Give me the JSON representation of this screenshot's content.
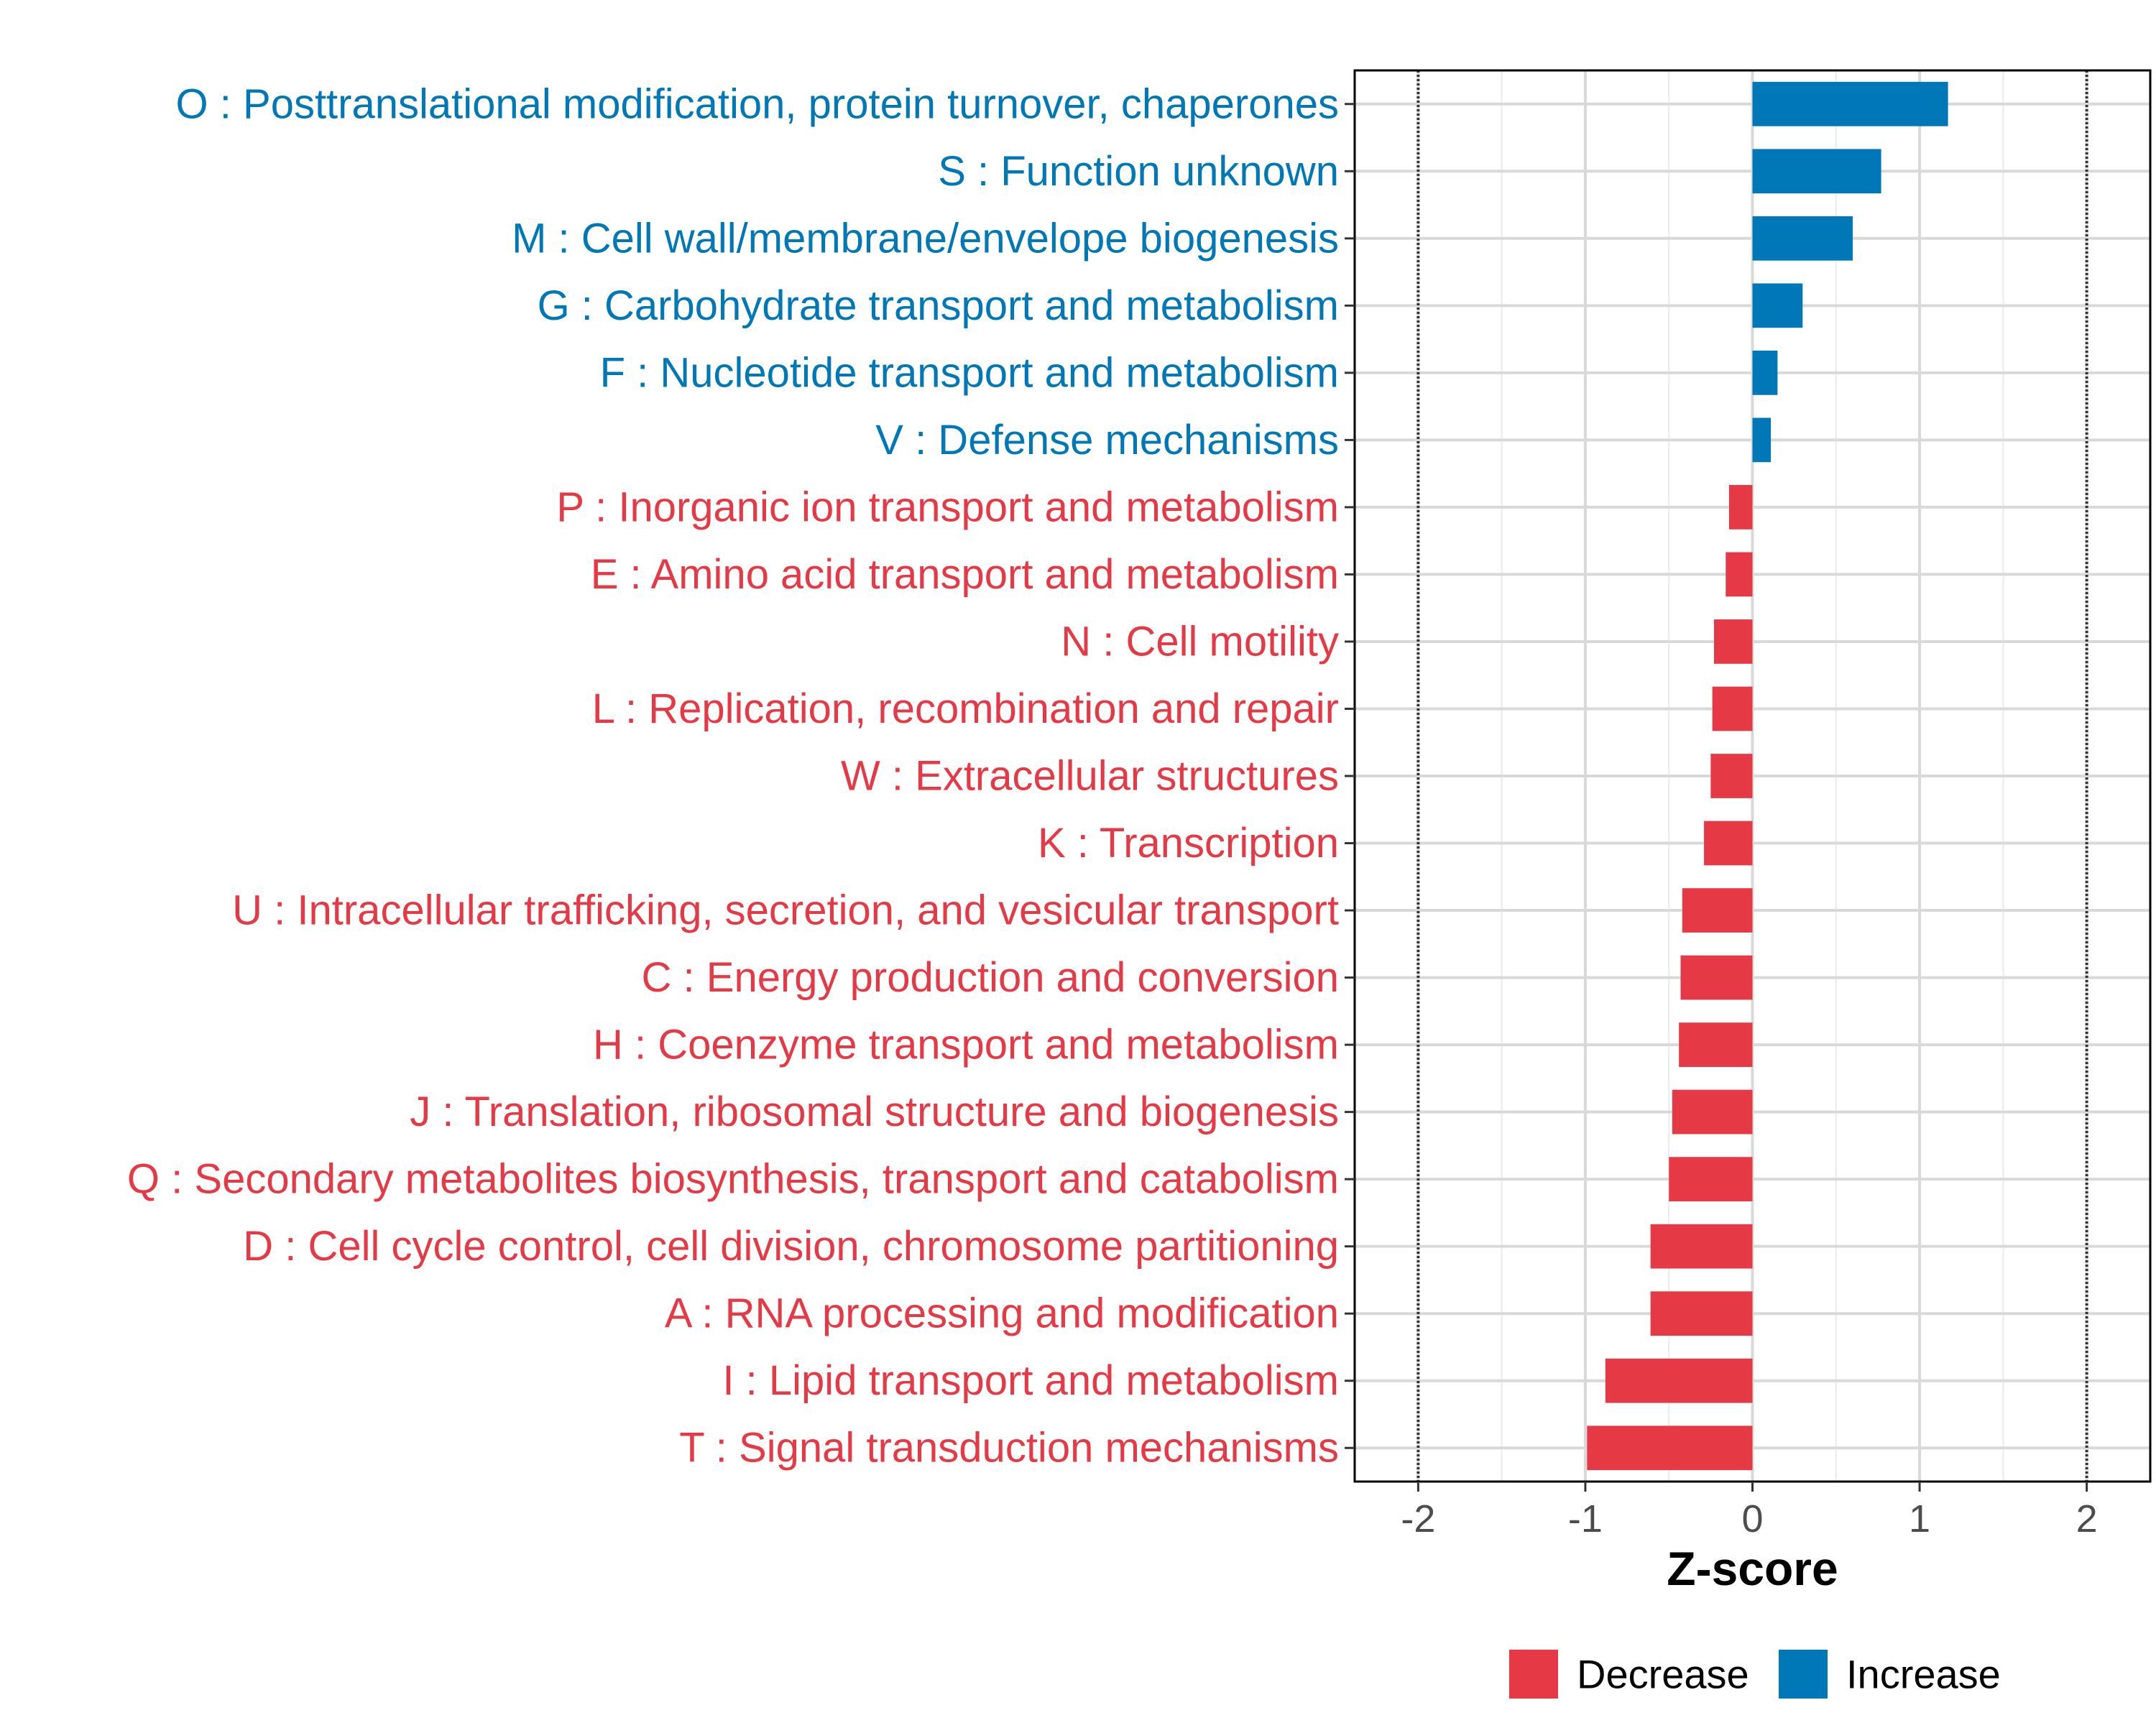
{
  "chart_data": {
    "type": "bar",
    "orientation": "horizontal",
    "title": "",
    "xlabel": "Z-score",
    "ylabel": "",
    "xlim": [
      -2.38,
      2.38
    ],
    "x_ticks": [
      -2,
      -1,
      0,
      1,
      2
    ],
    "x_tick_labels": [
      "-2",
      "-1",
      "0",
      "1",
      "2"
    ],
    "reference_lines": [
      -2,
      2
    ],
    "grid": true,
    "categories": [
      "O : Posttranslational modification, protein turnover, chaperones",
      "S : Function unknown",
      "M : Cell wall/membrane/envelope biogenesis",
      "G : Carbohydrate transport and metabolism",
      "F : Nucleotide transport and metabolism",
      "V : Defense mechanisms",
      "P : Inorganic ion transport and metabolism",
      "E : Amino acid transport and metabolism",
      "N : Cell motility",
      "L : Replication, recombination and repair",
      "W : Extracellular structures",
      "K : Transcription",
      "U : Intracellular trafficking, secretion, and vesicular transport",
      "C : Energy production and conversion",
      "H : Coenzyme transport and metabolism",
      "J : Translation, ribosomal structure and biogenesis",
      "Q : Secondary metabolites biosynthesis, transport and catabolism",
      "D : Cell cycle control, cell division, chromosome partitioning",
      "A : RNA processing and modification",
      "I : Lipid transport and metabolism",
      "T : Signal transduction mechanisms"
    ],
    "values": [
      1.17,
      0.77,
      0.6,
      0.3,
      0.15,
      0.11,
      -0.14,
      -0.16,
      -0.23,
      -0.24,
      -0.25,
      -0.29,
      -0.42,
      -0.43,
      -0.44,
      -0.48,
      -0.5,
      -0.61,
      -0.61,
      -0.88,
      -0.99
    ],
    "groups": [
      "Increase",
      "Increase",
      "Increase",
      "Increase",
      "Increase",
      "Increase",
      "Decrease",
      "Decrease",
      "Decrease",
      "Decrease",
      "Decrease",
      "Decrease",
      "Decrease",
      "Decrease",
      "Decrease",
      "Decrease",
      "Decrease",
      "Decrease",
      "Decrease",
      "Decrease",
      "Decrease"
    ],
    "legend": [
      {
        "label": "Decrease",
        "color": "#e63946"
      },
      {
        "label": "Increase",
        "color": "#0077b6"
      }
    ],
    "legend_position": "bottom"
  }
}
